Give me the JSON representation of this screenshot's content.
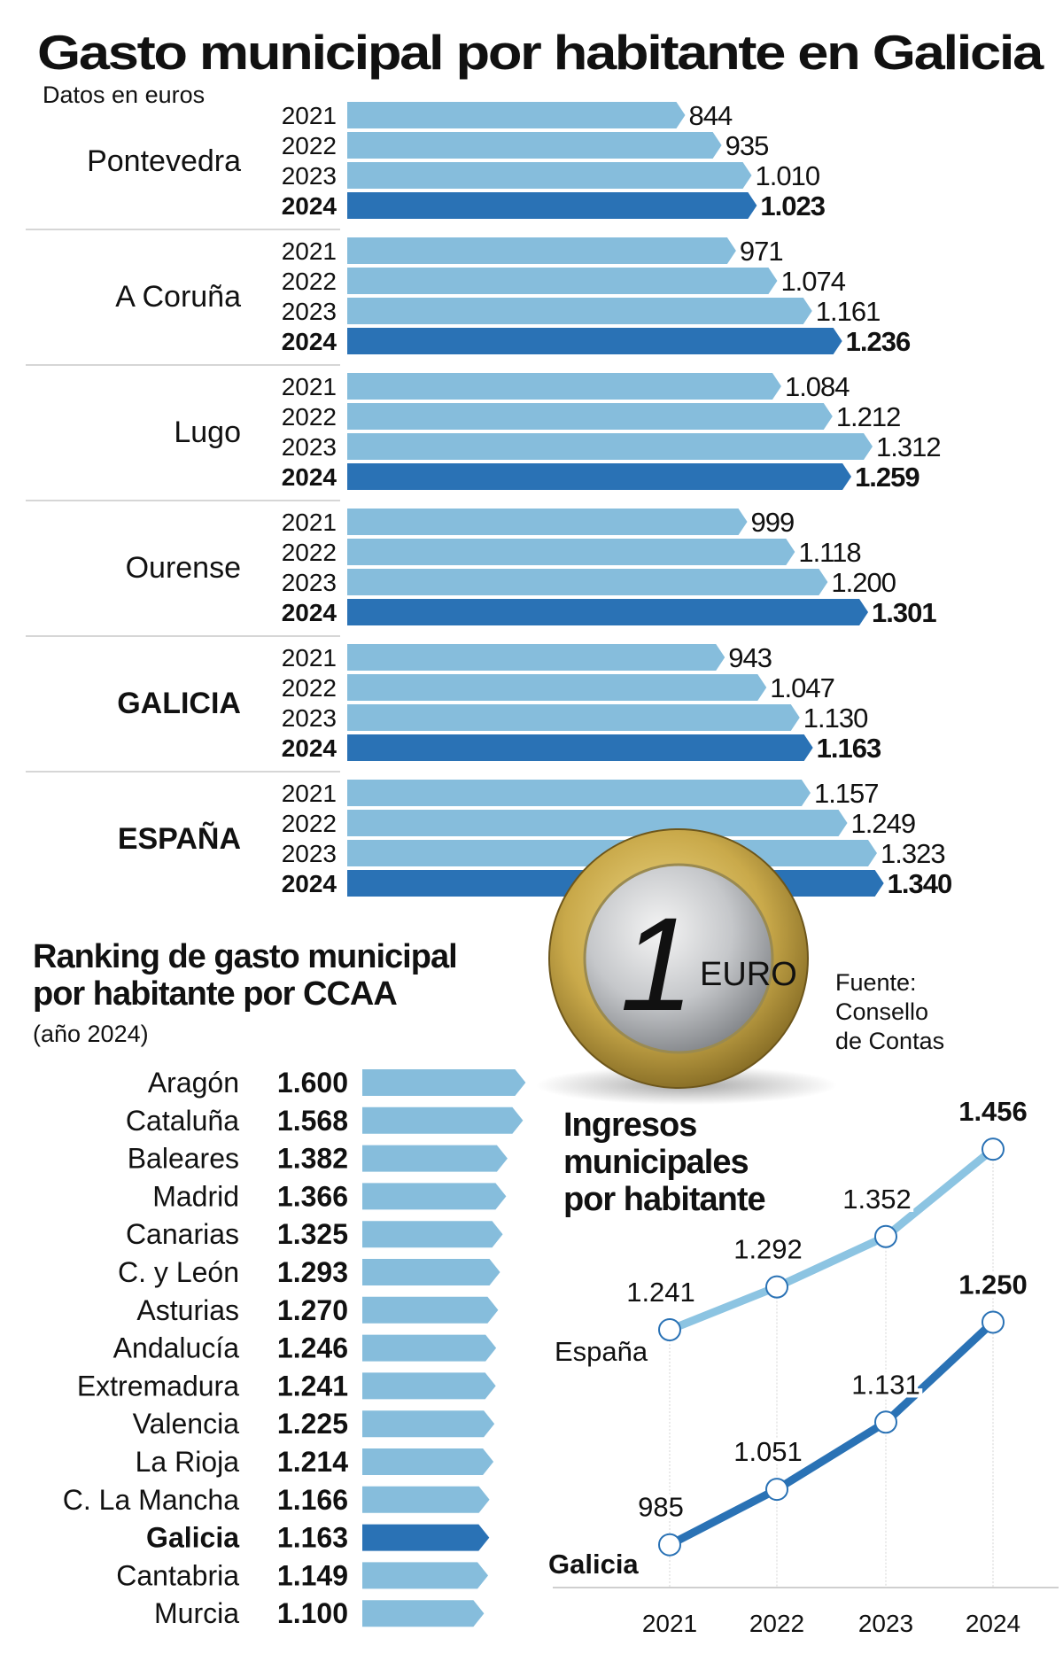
{
  "colors": {
    "light_bar": "#86bddc",
    "dark_bar": "#2a72b5",
    "espana_line": "#8cc4e2",
    "galicia_line": "#2a72b5",
    "text": "#111111",
    "divider": "#d6d6d6"
  },
  "chart_data": [
    {
      "type": "bar",
      "orientation": "horizontal",
      "title": "Gasto municipal por habitante en Galicia",
      "subtitle": "Datos en euros",
      "years": [
        "2021",
        "2022",
        "2023",
        "2024"
      ],
      "groups": [
        {
          "name": "Pontevedra",
          "bold": false,
          "values": [
            844,
            935,
            1010,
            1023
          ],
          "labels": [
            "844",
            "935",
            "1.010",
            "1.023"
          ]
        },
        {
          "name": "A Coruña",
          "bold": false,
          "values": [
            971,
            1074,
            1161,
            1236
          ],
          "labels": [
            "971",
            "1.074",
            "1.161",
            "1.236"
          ]
        },
        {
          "name": "Lugo",
          "bold": false,
          "values": [
            1084,
            1212,
            1312,
            1259
          ],
          "labels": [
            "1.084",
            "1.212",
            "1.312",
            "1.259"
          ]
        },
        {
          "name": "Ourense",
          "bold": false,
          "values": [
            999,
            1118,
            1200,
            1301
          ],
          "labels": [
            "999",
            "1.118",
            "1.200",
            "1.301"
          ]
        },
        {
          "name": "GALICIA",
          "bold": true,
          "values": [
            943,
            1047,
            1130,
            1163
          ],
          "labels": [
            "943",
            "1.047",
            "1.130",
            "1.163"
          ]
        },
        {
          "name": "ESPAÑA",
          "bold": true,
          "values": [
            1157,
            1249,
            1323,
            1340
          ],
          "labels": [
            "1.157",
            "1.249",
            "1.323",
            "1.340"
          ]
        }
      ]
    },
    {
      "type": "bar",
      "orientation": "horizontal",
      "title_lines": [
        "Ranking de gasto municipal",
        "por habitante por CCAA"
      ],
      "subtitle": "(año 2024)",
      "categories": [
        "Aragón",
        "Cataluña",
        "Baleares",
        "Madrid",
        "Canarias",
        "C. y León",
        "Asturias",
        "Andalucía",
        "Extremadura",
        "Valencia",
        "La Rioja",
        "C. La Mancha",
        "Galicia",
        "Cantabria",
        "Murcia"
      ],
      "values": [
        1600,
        1568,
        1382,
        1366,
        1325,
        1293,
        1270,
        1246,
        1241,
        1225,
        1214,
        1166,
        1163,
        1149,
        1100
      ],
      "labels": [
        "1.600",
        "1.568",
        "1.382",
        "1.366",
        "1.325",
        "1.293",
        "1.270",
        "1.246",
        "1.241",
        "1.225",
        "1.214",
        "1.166",
        "1.163",
        "1.149",
        "1.100"
      ],
      "highlight": "Galicia"
    },
    {
      "type": "line",
      "title_lines": [
        "Ingresos",
        "municipales",
        "por habitante"
      ],
      "x": [
        "2021",
        "2022",
        "2023",
        "2024"
      ],
      "series": [
        {
          "name": "España",
          "values": [
            1241,
            1292,
            1352,
            1456
          ],
          "labels": [
            "1.241",
            "1.292",
            "1.352",
            "1.456"
          ]
        },
        {
          "name": "Galicia",
          "values": [
            985,
            1051,
            1131,
            1250
          ],
          "labels": [
            "985",
            "1.051",
            "1.131",
            "1.250"
          ]
        }
      ],
      "grid": "vertical"
    }
  ],
  "source": {
    "lines": [
      "Fuente:",
      "Consello",
      "de Contas"
    ]
  }
}
